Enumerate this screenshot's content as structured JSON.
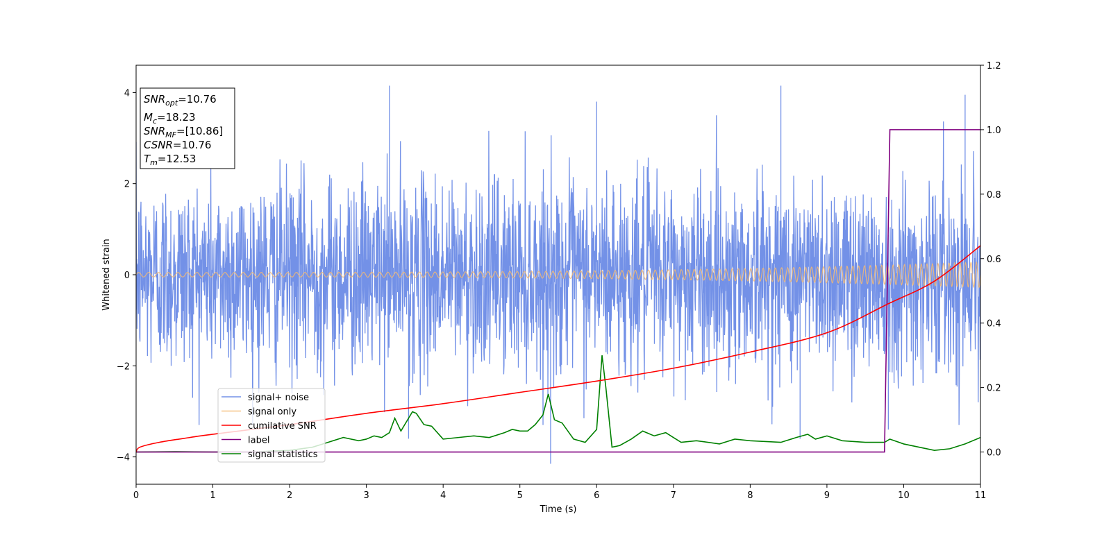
{
  "chart_data": {
    "type": "line",
    "xlabel": "Time (s)",
    "ylabel": "Whitened strain",
    "xlim": [
      0,
      11
    ],
    "ylim_left": [
      -4.6,
      4.6
    ],
    "ylim_right": [
      -0.1,
      1.2
    ],
    "x_ticks": [
      0,
      1,
      2,
      3,
      4,
      5,
      6,
      7,
      8,
      9,
      10,
      11
    ],
    "y_ticks_left": [
      -4,
      -2,
      0,
      2,
      4
    ],
    "y_ticks_right": [
      0.0,
      0.2,
      0.4,
      0.6,
      0.8,
      1.0,
      1.2
    ],
    "grid": false,
    "legend_position": "lower-left",
    "colors": {
      "signal_noise": "#6b8be6",
      "signal_only": "#f5b971",
      "cumulative_snr": "#ff0000",
      "label": "#800080",
      "signal_statistics": "#008000"
    },
    "series": [
      {
        "name": "signal+ noise",
        "axis": "left",
        "description_visible": "dense noisy strain, amplitude roughly within -3.7 to 4.2",
        "x_range": [
          0,
          11
        ],
        "amplitude": 1.05,
        "outlier_high": [
          [
            3.3,
            4.15
          ],
          [
            8.4,
            4.15
          ],
          [
            10.8,
            3.95
          ],
          [
            6.0,
            3.8
          ]
        ],
        "outlier_low": [
          [
            5.4,
            -4.15
          ],
          [
            3.55,
            -3.6
          ],
          [
            8.65,
            -3.6
          ],
          [
            9.8,
            -3.4
          ]
        ]
      },
      {
        "name": "signal only",
        "axis": "left",
        "x_range": [
          0,
          11
        ],
        "amplitude_start": 0.05,
        "amplitude_end": 0.28,
        "cycles": 120
      },
      {
        "name": "cumilative SNR",
        "axis": "right",
        "x": [
          0,
          0.05,
          0.3,
          0.7,
          1.0,
          2.0,
          3.0,
          4.0,
          5.0,
          6.0,
          7.0,
          8.0,
          9.0,
          9.8,
          10.4,
          11.0
        ],
        "y": [
          0.0,
          0.015,
          0.03,
          0.045,
          0.055,
          0.085,
          0.12,
          0.15,
          0.185,
          0.22,
          0.26,
          0.31,
          0.37,
          0.46,
          0.53,
          0.64
        ]
      },
      {
        "name": "label",
        "axis": "right",
        "x": [
          0,
          9.75,
          9.82,
          11.0
        ],
        "y": [
          0.0,
          0.0,
          1.0,
          1.0
        ]
      },
      {
        "name": "signal statistics",
        "axis": "right",
        "x": [
          0,
          0.5,
          1.0,
          1.5,
          2.0,
          2.3,
          2.5,
          2.7,
          2.9,
          3.0,
          3.1,
          3.2,
          3.3,
          3.37,
          3.45,
          3.6,
          3.65,
          3.75,
          3.85,
          4.0,
          4.2,
          4.4,
          4.6,
          4.8,
          4.9,
          5.0,
          5.1,
          5.2,
          5.3,
          5.37,
          5.45,
          5.55,
          5.7,
          5.85,
          6.0,
          6.07,
          6.12,
          6.2,
          6.3,
          6.45,
          6.6,
          6.75,
          6.9,
          7.1,
          7.3,
          7.6,
          7.8,
          8.0,
          8.4,
          8.6,
          8.75,
          8.85,
          9.0,
          9.2,
          9.5,
          9.75,
          9.82,
          10.0,
          10.2,
          10.4,
          10.6,
          10.8,
          11.0
        ],
        "y": [
          0.0,
          0.001,
          0.0,
          0.0,
          0.005,
          0.015,
          0.03,
          0.045,
          0.035,
          0.04,
          0.05,
          0.045,
          0.06,
          0.105,
          0.065,
          0.125,
          0.12,
          0.085,
          0.08,
          0.04,
          0.045,
          0.05,
          0.045,
          0.06,
          0.07,
          0.065,
          0.065,
          0.085,
          0.115,
          0.18,
          0.1,
          0.09,
          0.04,
          0.03,
          0.07,
          0.3,
          0.2,
          0.015,
          0.02,
          0.04,
          0.065,
          0.05,
          0.06,
          0.03,
          0.035,
          0.025,
          0.04,
          0.035,
          0.03,
          0.045,
          0.055,
          0.04,
          0.05,
          0.035,
          0.03,
          0.03,
          0.04,
          0.025,
          0.015,
          0.005,
          0.01,
          0.025,
          0.045
        ]
      }
    ],
    "annotation": {
      "lines": [
        {
          "base": "SNR",
          "sub": "opt",
          "value": "=10.76"
        },
        {
          "base": "M",
          "sub": "c",
          "value": "=18.23"
        },
        {
          "base": "SNR",
          "sub": "MF",
          "value": "=[10.86]"
        },
        {
          "base": "CSNR",
          "sub": "",
          "value": "=10.76"
        },
        {
          "base": "T",
          "sub": "m",
          "value": "=12.53"
        }
      ]
    }
  }
}
